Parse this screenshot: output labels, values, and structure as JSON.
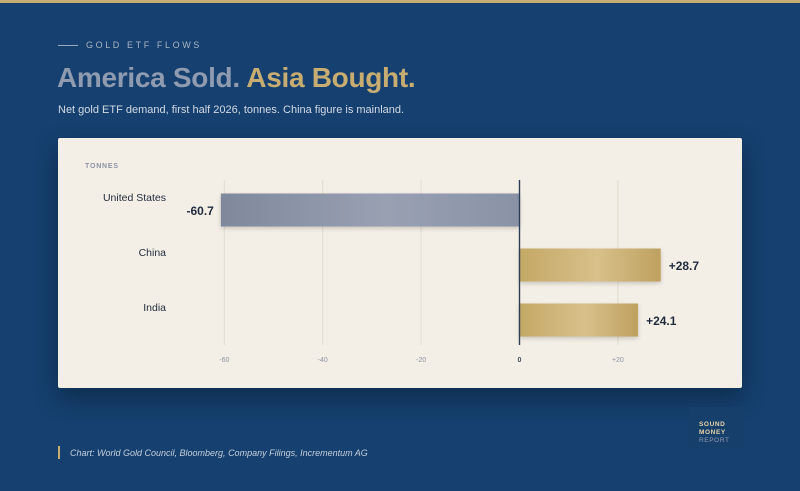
{
  "header": {
    "kicker": "GOLD ETF FLOWS",
    "title_part1": "America Sold.",
    "title_part2": "Asia Bought.",
    "subtitle": "Net gold ETF demand, first half 2026, tonnes. China figure is mainland."
  },
  "footer": {
    "source": "Chart: World Gold Council, Bloomberg, Company Filings, Incrementum AG"
  },
  "logo": {
    "line1": "SOUND",
    "line2": "MONEY",
    "line3": "REPORT"
  },
  "colors": {
    "negative": "#8a93a6",
    "positive": "#c8ad72",
    "accent": "#c8ad72",
    "background": "#15406f"
  },
  "chart_data": {
    "type": "bar",
    "orientation": "horizontal",
    "unit_label": "TONNES",
    "categories": [
      "United States",
      "China",
      "India"
    ],
    "values": [
      -60.7,
      28.7,
      24.1
    ],
    "value_labels": [
      "-60.7",
      "+28.7",
      "+24.1"
    ],
    "xlim": [
      -60,
      20
    ],
    "xticks": [
      -60,
      -40,
      -20,
      0,
      20
    ],
    "xtick_labels": [
      "-60",
      "-40",
      "-20",
      "0",
      "+20"
    ],
    "grid": true
  }
}
